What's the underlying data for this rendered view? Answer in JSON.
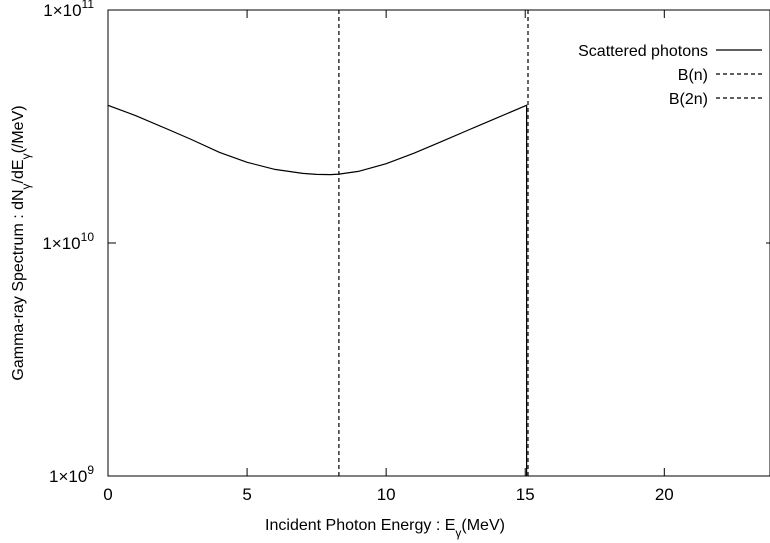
{
  "chart_data": {
    "type": "line",
    "title": "",
    "xlabel": "Incident Photon Energy : E",
    "xlabel_sub": "γ",
    "xlabel_unit": "(MeV)",
    "ylabel_parts": [
      {
        "t": "Gamma-ray Spectrum : dN"
      },
      {
        "t": "γ",
        "sub": true
      },
      {
        "t": "/dE"
      },
      {
        "t": "γ",
        "sub": true
      },
      {
        "t": "(/MeV)"
      }
    ],
    "xlim": [
      0,
      23.8
    ],
    "ylim": [
      1000000000.0,
      100000000000.0
    ],
    "yscale": "log",
    "grid": false,
    "legend_position": "top-right",
    "x_ticks": [
      {
        "value": 0,
        "label": "0"
      },
      {
        "value": 5,
        "label": "5"
      },
      {
        "value": 10,
        "label": "10"
      },
      {
        "value": 15,
        "label": "15"
      },
      {
        "value": 20,
        "label": "20"
      }
    ],
    "y_ticks": [
      {
        "value": 1000000000.0,
        "mantissa": "1×10",
        "exp": "9"
      },
      {
        "value": 10000000000.0,
        "mantissa": "1×10",
        "exp": "10"
      },
      {
        "value": 100000000000.0,
        "mantissa": "1×10",
        "exp": "11"
      }
    ],
    "series": [
      {
        "name": "Scattered photons",
        "style": "solid",
        "color": "#000000",
        "x": [
          0,
          1,
          2,
          3,
          4,
          5,
          6,
          7,
          7.5,
          8,
          8.3,
          9,
          10,
          11,
          12,
          13,
          14,
          15.05,
          15.05
        ],
        "y": [
          39000000000.0,
          35200000000.0,
          31300000000.0,
          27800000000.0,
          24500000000.0,
          22200000000.0,
          20700000000.0,
          19900000000.0,
          19700000000.0,
          19650000000.0,
          19750000000.0,
          20300000000.0,
          21900000000.0,
          24300000000.0,
          27300000000.0,
          30700000000.0,
          34500000000.0,
          39000000000.0,
          1000000000.0
        ]
      },
      {
        "name": "B(n)",
        "style": "dashed",
        "color": "#000000",
        "x": [
          8.3,
          8.3
        ],
        "y": [
          1000000000.0,
          100000000000.0
        ]
      },
      {
        "name": "B(2n)",
        "style": "dashed",
        "color": "#000000",
        "x": [
          15.1,
          15.1
        ],
        "y": [
          1000000000.0,
          100000000000.0
        ]
      }
    ]
  }
}
